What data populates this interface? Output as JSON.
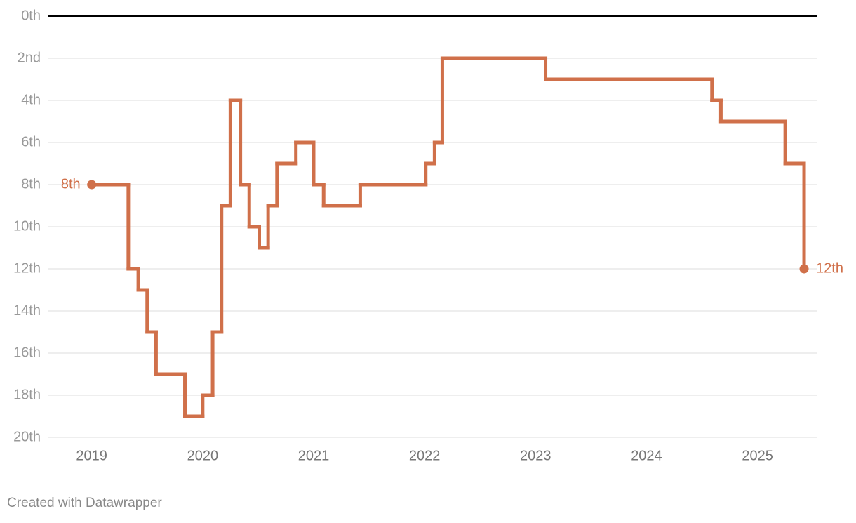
{
  "chart_data": {
    "type": "step",
    "x": [
      2019.0,
      2019.33,
      2019.42,
      2019.5,
      2019.58,
      2019.84,
      2020.0,
      2020.09,
      2020.17,
      2020.25,
      2020.34,
      2020.42,
      2020.51,
      2020.59,
      2020.67,
      2020.84,
      2021.0,
      2021.09,
      2021.42,
      2022.01,
      2022.09,
      2022.16,
      2023.09,
      2024.59,
      2024.67,
      2025.25,
      2025.42
    ],
    "values": [
      8,
      12,
      13,
      15,
      17,
      19,
      18,
      15,
      9,
      4,
      8,
      10,
      11,
      9,
      7,
      6,
      8,
      9,
      8,
      7,
      6,
      2,
      3,
      4,
      5,
      7,
      12
    ],
    "value_labels": [
      "8th",
      null,
      null,
      null,
      null,
      null,
      null,
      null,
      null,
      null,
      null,
      null,
      null,
      null,
      null,
      null,
      null,
      null,
      null,
      null,
      null,
      null,
      null,
      null,
      null,
      null,
      "12th"
    ],
    "color": "#d0704a",
    "xlim": [
      2018.61,
      2025.54
    ],
    "xticks": [
      2019,
      2020,
      2021,
      2022,
      2023,
      2024,
      2025
    ],
    "ylim": [
      0,
      20
    ],
    "y_inverted": true,
    "grid": true,
    "yticks": [
      {
        "value": 0,
        "label": "0th"
      },
      {
        "value": 2,
        "label": "2nd"
      },
      {
        "value": 4,
        "label": "4th"
      },
      {
        "value": 6,
        "label": "6th"
      },
      {
        "value": 8,
        "label": "8th"
      },
      {
        "value": 10,
        "label": "10th"
      },
      {
        "value": 12,
        "label": "12th"
      },
      {
        "value": 14,
        "label": "14th"
      },
      {
        "value": 16,
        "label": "16th"
      },
      {
        "value": 18,
        "label": "18th"
      },
      {
        "value": 20,
        "label": "20th"
      }
    ],
    "footer": "Created with Datawrapper"
  }
}
